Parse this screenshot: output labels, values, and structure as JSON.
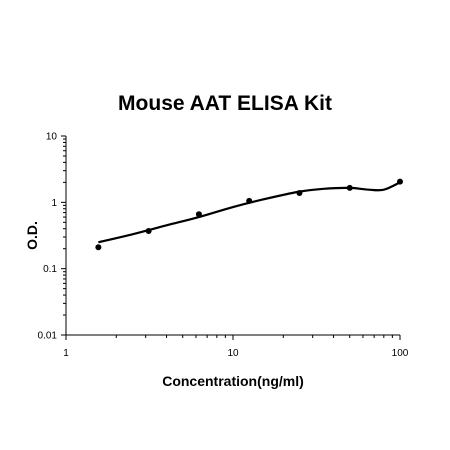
{
  "chart_data": {
    "type": "scatter",
    "title": "Mouse AAT ELISA Kit",
    "xlabel": "Concentration(ng/ml)",
    "ylabel": "O.D.",
    "x_scale": "log",
    "y_scale": "log",
    "xlim": [
      1,
      100
    ],
    "ylim": [
      0.01,
      10
    ],
    "x_ticks": [
      "1",
      "10",
      "100"
    ],
    "y_ticks": [
      "0.01",
      "0.1",
      "1",
      "10"
    ],
    "grid": false,
    "legend": "none",
    "series": [
      {
        "points": [
          {
            "x": 1.5625,
            "y": 0.21
          },
          {
            "x": 3.125,
            "y": 0.37
          },
          {
            "x": 6.25,
            "y": 0.66
          },
          {
            "x": 12.5,
            "y": 1.05
          },
          {
            "x": 25,
            "y": 1.38
          },
          {
            "x": 50,
            "y": 1.65
          },
          {
            "x": 100,
            "y": 2.05
          }
        ],
        "fit_curve": [
          {
            "x": 1.5625,
            "y": 0.25
          },
          {
            "x": 2.5,
            "y": 0.33
          },
          {
            "x": 4,
            "y": 0.45
          },
          {
            "x": 6.25,
            "y": 0.6
          },
          {
            "x": 10,
            "y": 0.85
          },
          {
            "x": 15,
            "y": 1.1
          },
          {
            "x": 25,
            "y": 1.45
          },
          {
            "x": 35,
            "y": 1.6
          },
          {
            "x": 50,
            "y": 1.65
          },
          {
            "x": 65,
            "y": 1.55
          },
          {
            "x": 80,
            "y": 1.55
          },
          {
            "x": 100,
            "y": 2.0
          }
        ],
        "color": "#000000"
      }
    ]
  }
}
